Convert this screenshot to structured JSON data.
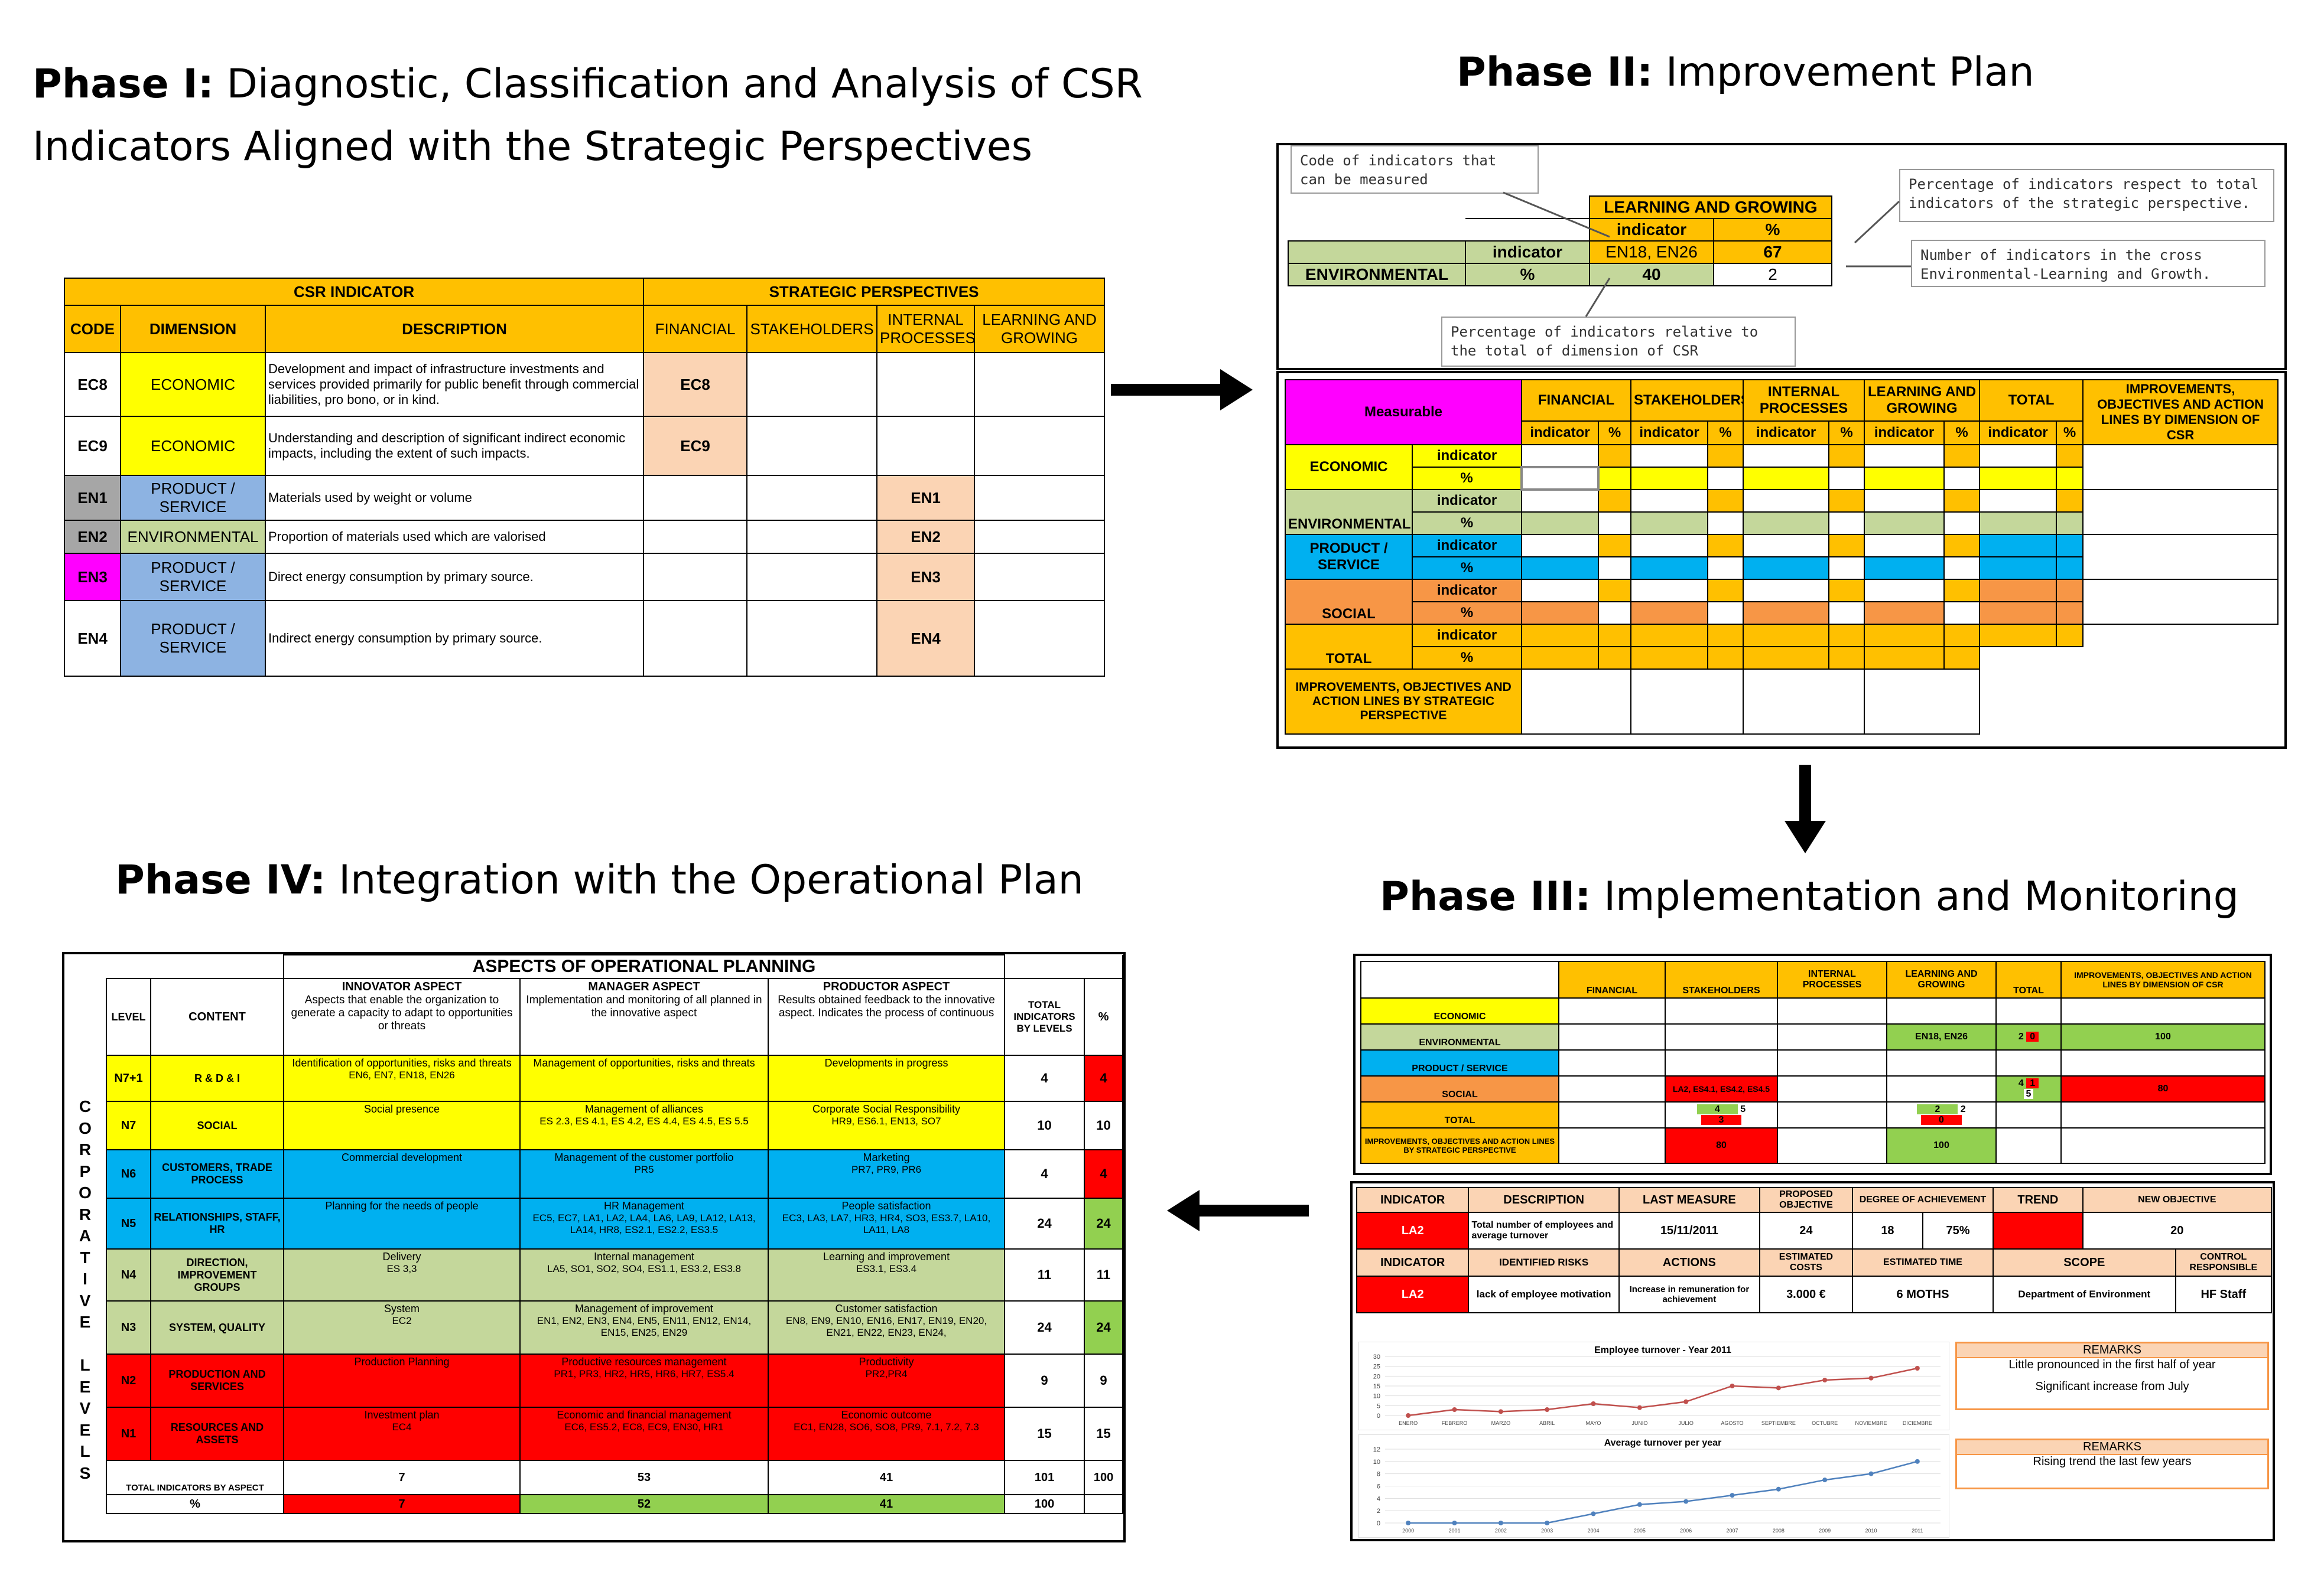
{
  "phases": {
    "p1": {
      "label": "Phase I:",
      "text": "Diagnostic, Classification and Analysis of CSR",
      "text2": "Indicators Aligned with the Strategic Perspectives"
    },
    "p2": {
      "label": "Phase II:",
      "text": "Improvement Plan"
    },
    "p3": {
      "label": "Phase III:",
      "text": "Implementation and Monitoring"
    },
    "p4": {
      "label": "Phase IV:",
      "text": "Integration with the Operational Plan"
    }
  },
  "csr": {
    "h_indicator": "CSR INDICATOR",
    "h_strategic": "STRATEGIC PERSPECTIVES",
    "cols": [
      "CODE",
      "DIMENSION",
      "DESCRIPTION",
      "FINANCIAL",
      "STAKEHOLDERS",
      "INTERNAL PROCESSES",
      "LEARNING AND GROWING"
    ],
    "rows": [
      {
        "code": "EC8",
        "dim": "ECONOMIC",
        "desc": "Development and impact of infrastructure investments and services provided primarily for public benefit through commercial liabilities, pro bono, or in kind.",
        "fin": "EC8",
        "ip": ""
      },
      {
        "code": "EC9",
        "dim": "ECONOMIC",
        "desc": "Understanding and description of significant indirect economic impacts, including the extent of such impacts.",
        "fin": "EC9",
        "ip": ""
      },
      {
        "code": "EN1",
        "dim": "PRODUCT / SERVICE",
        "desc": "Materials used by weight or volume",
        "fin": "",
        "ip": "EN1"
      },
      {
        "code": "EN2",
        "dim": "ENVIRONMENTAL",
        "desc": "Proportion of materials used which are valorised",
        "fin": "",
        "ip": "EN2"
      },
      {
        "code": "EN3",
        "dim": "PRODUCT / SERVICE",
        "desc": "Direct energy consumption by primary source.",
        "fin": "",
        "ip": "EN3"
      },
      {
        "code": "EN4",
        "dim": "PRODUCT / SERVICE",
        "desc": "Indirect energy consumption by primary source.",
        "fin": "",
        "ip": "EN4"
      }
    ]
  },
  "p2top": {
    "lg": "LEARNING AND GROWING",
    "indicator": "indicator",
    "pct": "%",
    "codes": "EN18, EN26",
    "v67": "67",
    "env": "ENVIRONMENTAL",
    "v40": "40",
    "v2": "2",
    "c1": "Code of indicators that can be measured",
    "c2": "Percentage of indicators respect to total indicators of the strategic perspective.",
    "c3": "Number of indicators in the cross Environmental-Learning and Growth.",
    "c4": "Percentage of indicators relative to the total of dimension of CSR"
  },
  "p2grid": {
    "measurable": "Measurable",
    "heads": [
      "FINANCIAL",
      "STAKEHOLDERS",
      "INTERNAL PROCESSES",
      "LEARNING AND GROWING",
      "TOTAL"
    ],
    "improve_col": "IMPROVEMENTS, OBJECTIVES AND ACTION LINES BY DIMENSION OF CSR",
    "rows": [
      "ECONOMIC",
      "ENVIRONMENTAL",
      "PRODUCT / SERVICE",
      "SOCIAL",
      "TOTAL"
    ],
    "ind": "indicator",
    "pct": "%",
    "improve_row": "IMPROVEMENTS, OBJECTIVES AND ACTION LINES BY STRATEGIC PERSPECTIVE"
  },
  "p3a": {
    "heads": [
      "FINANCIAL",
      "STAKEHOLDERS",
      "INTERNAL PROCESSES",
      "LEARNING AND GROWING",
      "TOTAL",
      "IMPROVEMENTS, OBJECTIVES AND ACTION LINES BY DIMENSION OF CSR"
    ],
    "rows": [
      "ECONOMIC",
      "ENVIRONMENTAL",
      "PRODUCT / SERVICE",
      "SOCIAL",
      "TOTAL",
      "IMPROVEMENTS, OBJECTIVES AND ACTION LINES BY STRATEGIC PERSPECTIVE"
    ],
    "en": "EN18, EN26",
    "la": "LA2, ES4.1, ES4.2, ES4.5",
    "v2": "2",
    "v0": "0",
    "v100": "100",
    "v4": "4",
    "v1": "1",
    "v5": "5",
    "v80": "80",
    "v3": "3"
  },
  "p3b": {
    "h1": [
      "INDICATOR",
      "DESCRIPTION",
      "LAST MEASURE",
      "PROPOSED OBJECTIVE",
      "DEGREE OF ACHIEVEMENT",
      "TREND",
      "NEW OBJECTIVE"
    ],
    "r1": [
      "LA2",
      "Total number of employees and average turnover",
      "15/11/2011",
      "24",
      "18",
      "75%",
      "",
      "20"
    ],
    "h2": [
      "INDICATOR",
      "IDENTIFIED RISKS",
      "ACTIONS",
      "ESTIMATED COSTS",
      "ESTIMATED TIME",
      "SCOPE",
      "CONTROL RESPONSIBLE"
    ],
    "r2": [
      "LA2",
      "lack of employee motivation",
      "Increase in remuneration for achievement",
      "3.000 €",
      "6 MOTHS",
      "Department of Environment",
      "HF Staff"
    ],
    "remarks": "REMARKS",
    "rem1a": "Little pronounced in the first half of year",
    "rem1b": "Significant increase from July",
    "rem2": "Rising trend the last few years"
  },
  "chart_data": [
    {
      "type": "line",
      "title": "Employee turnover - Year 2011",
      "categories": [
        "ENERO",
        "FEBRERO",
        "MARZO",
        "ABRIL",
        "MAYO",
        "JUNIO",
        "JULIO",
        "AGOSTO",
        "SEPTIEMBRE",
        "OCTUBRE",
        "NOVIEMBRE",
        "DICIEMBRE"
      ],
      "values": [
        0,
        3,
        2,
        3,
        6,
        4,
        7,
        15,
        14,
        18,
        19,
        24
      ],
      "ylim": [
        0,
        30
      ],
      "yticks": [
        0,
        5,
        10,
        15,
        20,
        25,
        30
      ],
      "color": "#c0504d"
    },
    {
      "type": "line",
      "title": "Average turnover per year",
      "categories": [
        "2000",
        "2001",
        "2002",
        "2003",
        "2004",
        "2005",
        "2006",
        "2007",
        "2008",
        "2009",
        "2010",
        "2011"
      ],
      "values": [
        0,
        0,
        0,
        0,
        1.5,
        3,
        3.5,
        4.5,
        5.5,
        7,
        8,
        10
      ],
      "ylim": [
        0,
        12
      ],
      "yticks": [
        0,
        2,
        4,
        6,
        8,
        10,
        12
      ],
      "color": "#4f81bd"
    }
  ],
  "p4": {
    "title": "ASPECTS OF OPERATIONAL PLANNING",
    "level": "LEVEL",
    "content": "CONTENT",
    "innov": "INNOVATOR ASPECT",
    "innov_d": "Aspects that enable the organization to generate a capacity to adapt to opportunities or threats",
    "mgr": "MANAGER ASPECT",
    "mgr_d": "Implementation and monitoring of all planned in the innovative aspect",
    "prod": "PRODUCTOR ASPECT",
    "prod_d": "Results obtained feedback to the innovative aspect. Indicates the process of continuous",
    "total": "TOTAL INDICATORS BY LEVELS",
    "pct": "%",
    "vertical": "CORPORATIVE LEVELS",
    "rows": [
      {
        "lvl": "N7+1",
        "content": "R & D & I",
        "a": "Identification of opportunities, risks and threats",
        "a2": "EN6, EN7, EN18, EN26",
        "b": "Management of opportunities, risks and threats",
        "b2": "",
        "c": "Developments in progress",
        "c2": "",
        "t": "4",
        "p": "4"
      },
      {
        "lvl": "N7",
        "content": "SOCIAL",
        "a": "Social presence",
        "a2": "",
        "b": "Management of alliances",
        "b2": "ES 2.3, ES 4.1, ES 4.2, ES 4.4, ES 4.5, ES 5.5",
        "c": "Corporate Social Responsibility",
        "c2": "HR9, ES6.1, EN13, SO7",
        "t": "10",
        "p": "10"
      },
      {
        "lvl": "N6",
        "content": "CUSTOMERS, TRADE PROCESS",
        "a": "Commercial development",
        "a2": "",
        "b": "Management of the customer portfolio",
        "b2": "PR5",
        "c": "Marketing",
        "c2": "PR7, PR9, PR6",
        "t": "4",
        "p": "4"
      },
      {
        "lvl": "N5",
        "content": "RELATIONSHIPS, STAFF, HR",
        "a": "Planning for the needs of people",
        "a2": "",
        "b": "HR Management",
        "b2": "EC5, EC7, LA1, LA2, LA4, LA6, LA9, LA12, LA13, LA14, HR8, ES2.1, ES2.2, ES3.5",
        "c": "People satisfaction",
        "c2": "EC3, LA3, LA7, HR3, HR4, SO3, ES3.7, LA10, LA11, LA8",
        "t": "24",
        "p": "24"
      },
      {
        "lvl": "N4",
        "content": "DIRECTION, IMPROVEMENT GROUPS",
        "a": "Delivery",
        "a2": "ES 3,3",
        "b": "Internal management",
        "b2": "LA5, SO1, SO2, SO4, ES1.1, ES3.2, ES3.8",
        "c": "Learning and improvement",
        "c2": "ES3.1, ES3.4",
        "t": "11",
        "p": "11"
      },
      {
        "lvl": "N3",
        "content": "SYSTEM, QUALITY",
        "a": "System",
        "a2": "EC2",
        "b": "Management of improvement",
        "b2": "EN1, EN2, EN3, EN4, EN5, EN11, EN12, EN14, EN15, EN25, EN29",
        "c": "Customer satisfaction",
        "c2": "EN8, EN9, EN10, EN16, EN17, EN19, EN20, EN21, EN22, EN23, EN24,",
        "t": "24",
        "p": "24"
      },
      {
        "lvl": "N2",
        "content": "PRODUCTION AND SERVICES",
        "a": "Production Planning",
        "a2": "",
        "b": "Productive resources management",
        "b2": "PR1, PR3, HR2, HR5, HR6, HR7, ES5.4",
        "c": "Productivity",
        "c2": "PR2,PR4",
        "t": "9",
        "p": "9"
      },
      {
        "lvl": "N1",
        "content": "RESOURCES AND ASSETS",
        "a": "Investment plan",
        "a2": "EC4",
        "b": "Economic and financial management",
        "b2": "EC6, ES5.2, EC8, EC9, EN30, HR1",
        "c": "Economic outcome",
        "c2": "EC1, EN28, SO6, SO8, PR9, 7.1, 7.2, 7.3",
        "t": "15",
        "p": "15"
      }
    ],
    "tot_label": "TOTAL INDICATORS BY ASPECT",
    "tot": [
      "7",
      "53",
      "41",
      "101",
      "100"
    ],
    "pct_label": "%",
    "pct_row": [
      "7",
      "52",
      "41",
      "100"
    ]
  }
}
